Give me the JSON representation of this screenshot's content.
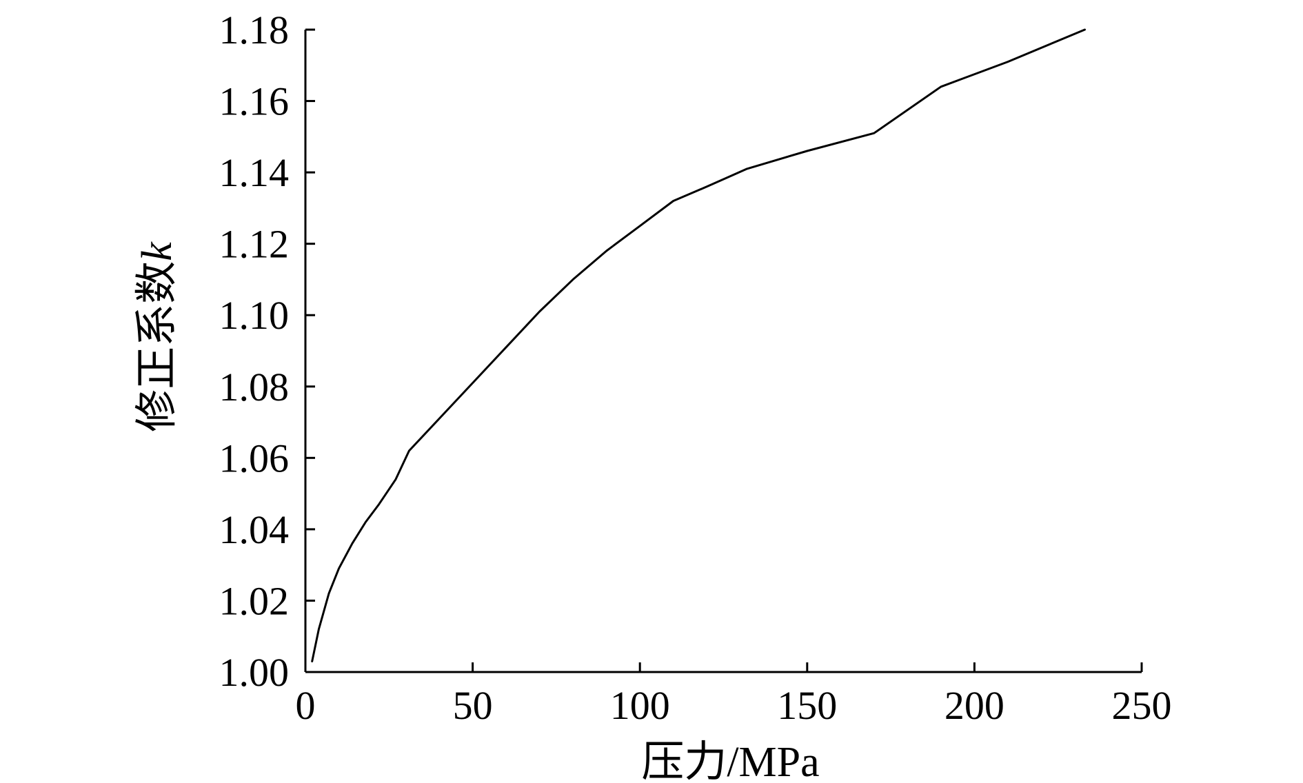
{
  "chart_data": {
    "type": "line",
    "title": "",
    "xlabel": "压力/MPa",
    "ylabel": "修正系数",
    "ylabel_var": "k",
    "xlim": [
      0,
      250
    ],
    "ylim": [
      1.0,
      1.18
    ],
    "x_ticks": [
      0,
      50,
      100,
      150,
      200,
      250
    ],
    "x_tick_labels": [
      "0",
      "50",
      "100",
      "150",
      "200",
      "250"
    ],
    "y_ticks": [
      1.0,
      1.02,
      1.04,
      1.06,
      1.08,
      1.1,
      1.12,
      1.14,
      1.16,
      1.18
    ],
    "y_tick_labels": [
      "1.00",
      "1.02",
      "1.04",
      "1.06",
      "1.08",
      "1.10",
      "1.12",
      "1.14",
      "1.16",
      "1.18"
    ],
    "grid": false,
    "legend": "none",
    "series": [
      {
        "color": "#000000",
        "x": [
          2,
          4,
          7,
          10,
          14,
          18,
          22,
          27,
          31,
          40,
          50,
          60,
          70,
          80,
          90,
          100,
          110,
          120,
          132,
          150,
          170,
          190,
          210,
          233
        ],
        "y": [
          1.003,
          1.012,
          1.022,
          1.029,
          1.036,
          1.042,
          1.047,
          1.054,
          1.062,
          1.071,
          1.081,
          1.091,
          1.101,
          1.11,
          1.118,
          1.125,
          1.132,
          1.136,
          1.141,
          1.146,
          1.151,
          1.164,
          1.171,
          1.18
        ]
      }
    ]
  }
}
